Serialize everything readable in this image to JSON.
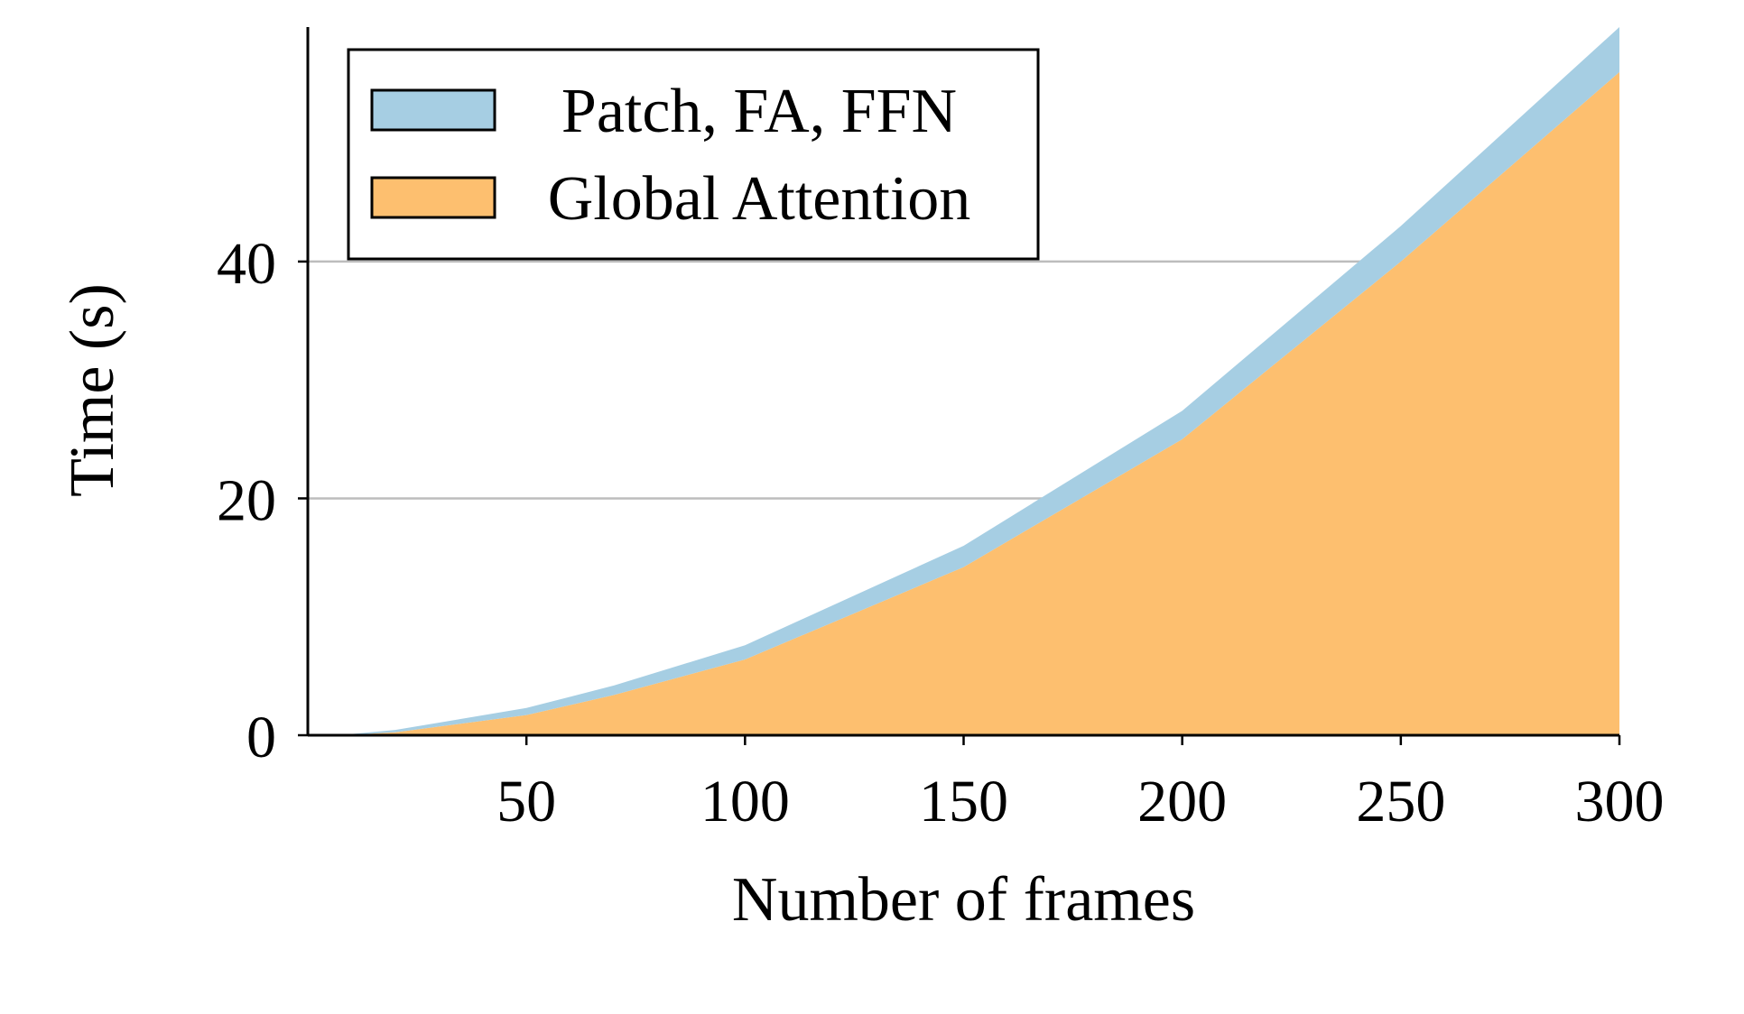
{
  "chart_data": {
    "type": "area",
    "stacked": true,
    "x": [
      10,
      20,
      50,
      70,
      100,
      150,
      200,
      250,
      300
    ],
    "series": [
      {
        "name": "Global Attention",
        "values": [
          0.05,
          0.25,
          1.7,
          3.4,
          6.4,
          14.2,
          25.0,
          40.0,
          56.0
        ],
        "color": "#fdbf6f"
      },
      {
        "name": "Patch, FA, FFN",
        "values": [
          0.05,
          0.2,
          0.6,
          0.8,
          1.2,
          1.8,
          2.4,
          3.0,
          3.8
        ],
        "color": "#a6cee3"
      }
    ],
    "xlabel": "Number of frames",
    "ylabel": "Time (s)",
    "xlim": [
      0,
      300
    ],
    "ylim": [
      0,
      59.8
    ],
    "xticks": [
      50,
      100,
      150,
      200,
      250,
      300
    ],
    "yticks": [
      0,
      20,
      40
    ],
    "grid": "horizontal",
    "legend_position": "top-left",
    "colors": {
      "grid": "#bdbdbd",
      "axis": "#000000"
    }
  }
}
